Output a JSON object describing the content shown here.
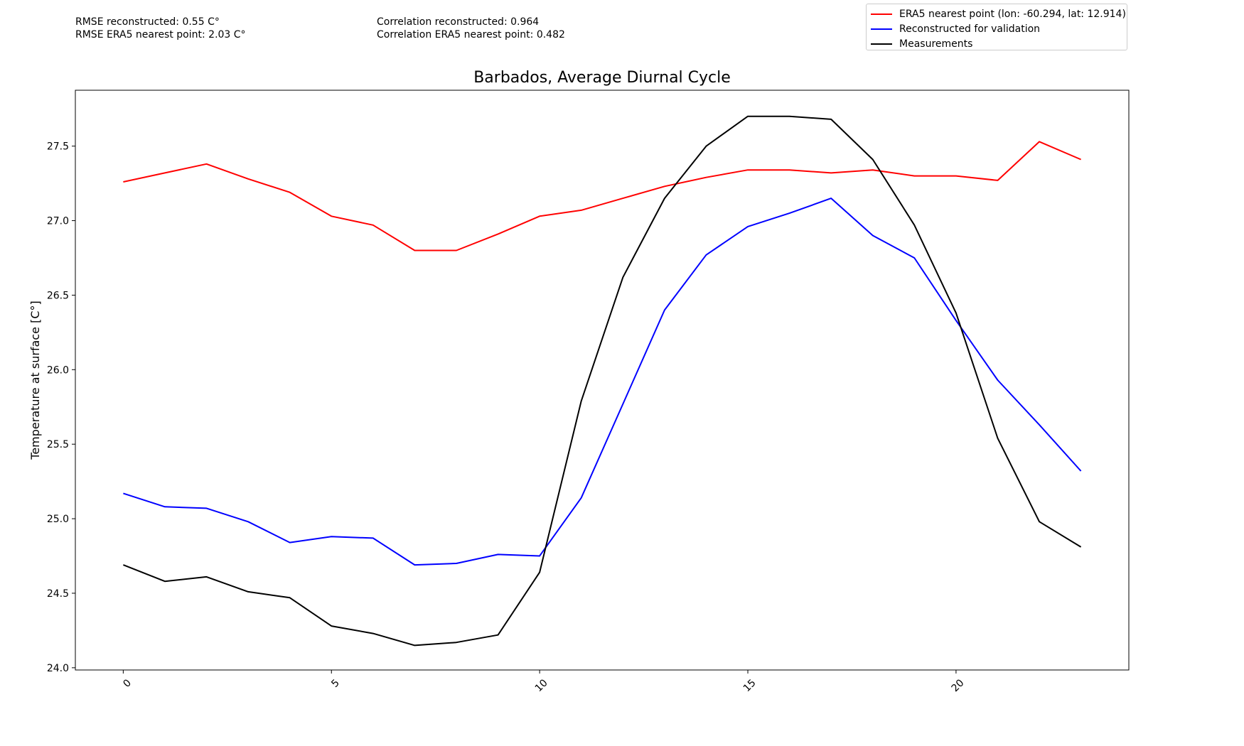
{
  "stats": {
    "rmse_reconstructed": "RMSE reconstructed: 0.55 C°",
    "rmse_era5": "RMSE ERA5 nearest point: 2.03 C°",
    "corr_reconstructed": "Correlation reconstructed: 0.964",
    "corr_era5": "Correlation ERA5 nearest point: 0.482"
  },
  "chart_data": {
    "type": "line",
    "title": "Barbados, Average Diurnal Cycle",
    "xlabel": "",
    "ylabel": "Temperature at surface [C°]",
    "xlim": [
      -1.15,
      24.15
    ],
    "ylim": [
      23.985,
      27.875
    ],
    "xticks": [
      0,
      5,
      10,
      15,
      20
    ],
    "yticks": [
      24.0,
      24.5,
      25.0,
      25.5,
      26.0,
      26.5,
      27.0,
      27.5
    ],
    "legend_position": "upper-right",
    "grid": false,
    "x": [
      0,
      1,
      2,
      3,
      4,
      5,
      6,
      7,
      8,
      9,
      10,
      11,
      12,
      13,
      14,
      15,
      16,
      17,
      18,
      19,
      20,
      21,
      22,
      23
    ],
    "series": [
      {
        "name": "ERA5 nearest point (lon: -60.294, lat: 12.914)",
        "color": "#ff0000",
        "values": [
          27.26,
          27.32,
          27.38,
          27.28,
          27.19,
          27.03,
          26.97,
          26.8,
          26.8,
          26.91,
          27.03,
          27.07,
          27.15,
          27.23,
          27.29,
          27.34,
          27.34,
          27.32,
          27.34,
          27.3,
          27.3,
          27.27,
          27.53,
          27.41
        ]
      },
      {
        "name": "Reconstructed for validation",
        "color": "#0000ff",
        "values": [
          25.17,
          25.08,
          25.07,
          24.98,
          24.84,
          24.88,
          24.87,
          24.69,
          24.7,
          24.76,
          24.75,
          25.14,
          25.77,
          26.4,
          26.77,
          26.96,
          27.05,
          27.15,
          26.9,
          26.75,
          26.33,
          25.93,
          25.63,
          25.32
        ]
      },
      {
        "name": "Measurements",
        "color": "#000000",
        "values": [
          24.69,
          24.58,
          24.61,
          24.51,
          24.47,
          24.28,
          24.23,
          24.15,
          24.17,
          24.22,
          24.64,
          25.79,
          26.62,
          27.15,
          27.5,
          27.7,
          27.7,
          27.68,
          27.41,
          26.97,
          26.38,
          25.54,
          24.98,
          24.81
        ]
      }
    ]
  }
}
